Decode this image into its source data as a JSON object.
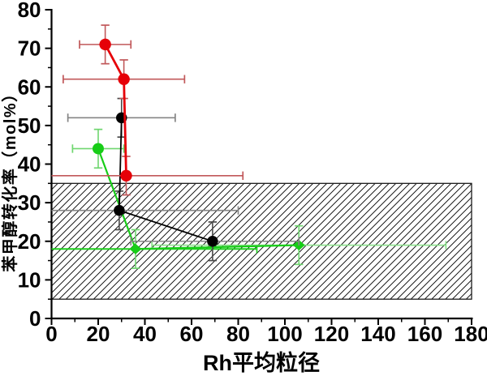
{
  "figure": {
    "background": "#ffffff"
  },
  "chart_data": {
    "type": "scatter",
    "title": "",
    "xlabel": "Rh平均粒径",
    "ylabel": "苯甲醇转化率（mol%）",
    "xlim": [
      0,
      180
    ],
    "ylim": [
      0,
      80
    ],
    "grid": false,
    "legend": null,
    "x_major_ticks": [
      0,
      20,
      40,
      60,
      80,
      100,
      120,
      140,
      160,
      180
    ],
    "x_minor_ticks": [
      10,
      30,
      50,
      70,
      90,
      110,
      130,
      150,
      170
    ],
    "y_major_ticks": [
      0,
      10,
      20,
      30,
      40,
      50,
      60,
      70,
      80
    ],
    "y_minor_ticks": [
      5,
      15,
      25,
      35,
      45,
      55,
      65,
      75
    ],
    "hatch_region": {
      "x0": 0,
      "x1": 180,
      "y0": 5,
      "y1": 35,
      "pattern": "diagonal-hatch",
      "line_color": "#000000",
      "border_color": "#1a1a1a"
    },
    "series": [
      {
        "name": "green",
        "color": "#17cd17",
        "err_color": "#6fd66f",
        "marker": "circle",
        "marker_size": 14,
        "line_width": 2.2,
        "points": [
          {
            "x": 20,
            "y": 44,
            "xlo": 9,
            "xhi": 31,
            "ylo": 39,
            "yhi": 49
          },
          {
            "x": 36,
            "y": 18,
            "xlo": 0,
            "xhi": 88,
            "ylo": 13,
            "yhi": 23,
            "xcap_lo": false,
            "xerr_color": "#1fcf1f",
            "xerr_width": 2,
            "marker": "diamond"
          },
          {
            "x": 106,
            "y": 19,
            "xlo": 43,
            "xhi": 169,
            "ylo": 14,
            "yhi": 24,
            "xerr_color": "#8ae08a",
            "marker": "diamond"
          }
        ]
      },
      {
        "name": "black",
        "color": "#000000",
        "err_color": "#858585",
        "yerr_color": "#4a4a4a",
        "marker": "circle",
        "marker_size": 13.5,
        "line_width": 1.8,
        "points": [
          {
            "x": 30,
            "y": 52,
            "xlo": 7,
            "xhi": 53,
            "ylo": 47,
            "yhi": 57
          },
          {
            "x": 29,
            "y": 28,
            "xlo": 0,
            "xhi": 80,
            "ylo": 23,
            "yhi": 33,
            "xcap_lo": false
          },
          {
            "x": 69,
            "y": 20,
            "xlo": 34,
            "xhi": 106,
            "ylo": 15,
            "yhi": 25
          }
        ]
      },
      {
        "name": "red",
        "color": "#e60008",
        "err_color": "#c1585a",
        "marker": "circle",
        "marker_size": 14.4,
        "line_width": 2.8,
        "points": [
          {
            "x": 23,
            "y": 71,
            "xlo": 12,
            "xhi": 34,
            "ylo": 66,
            "yhi": 76
          },
          {
            "x": 31,
            "y": 62,
            "xlo": 5,
            "xhi": 57,
            "ylo": 57,
            "yhi": 67
          },
          {
            "x": 32,
            "y": 37,
            "xlo": 0,
            "xhi": 82,
            "ylo": 32,
            "yhi": 42,
            "xcap_lo": false
          }
        ]
      }
    ]
  }
}
